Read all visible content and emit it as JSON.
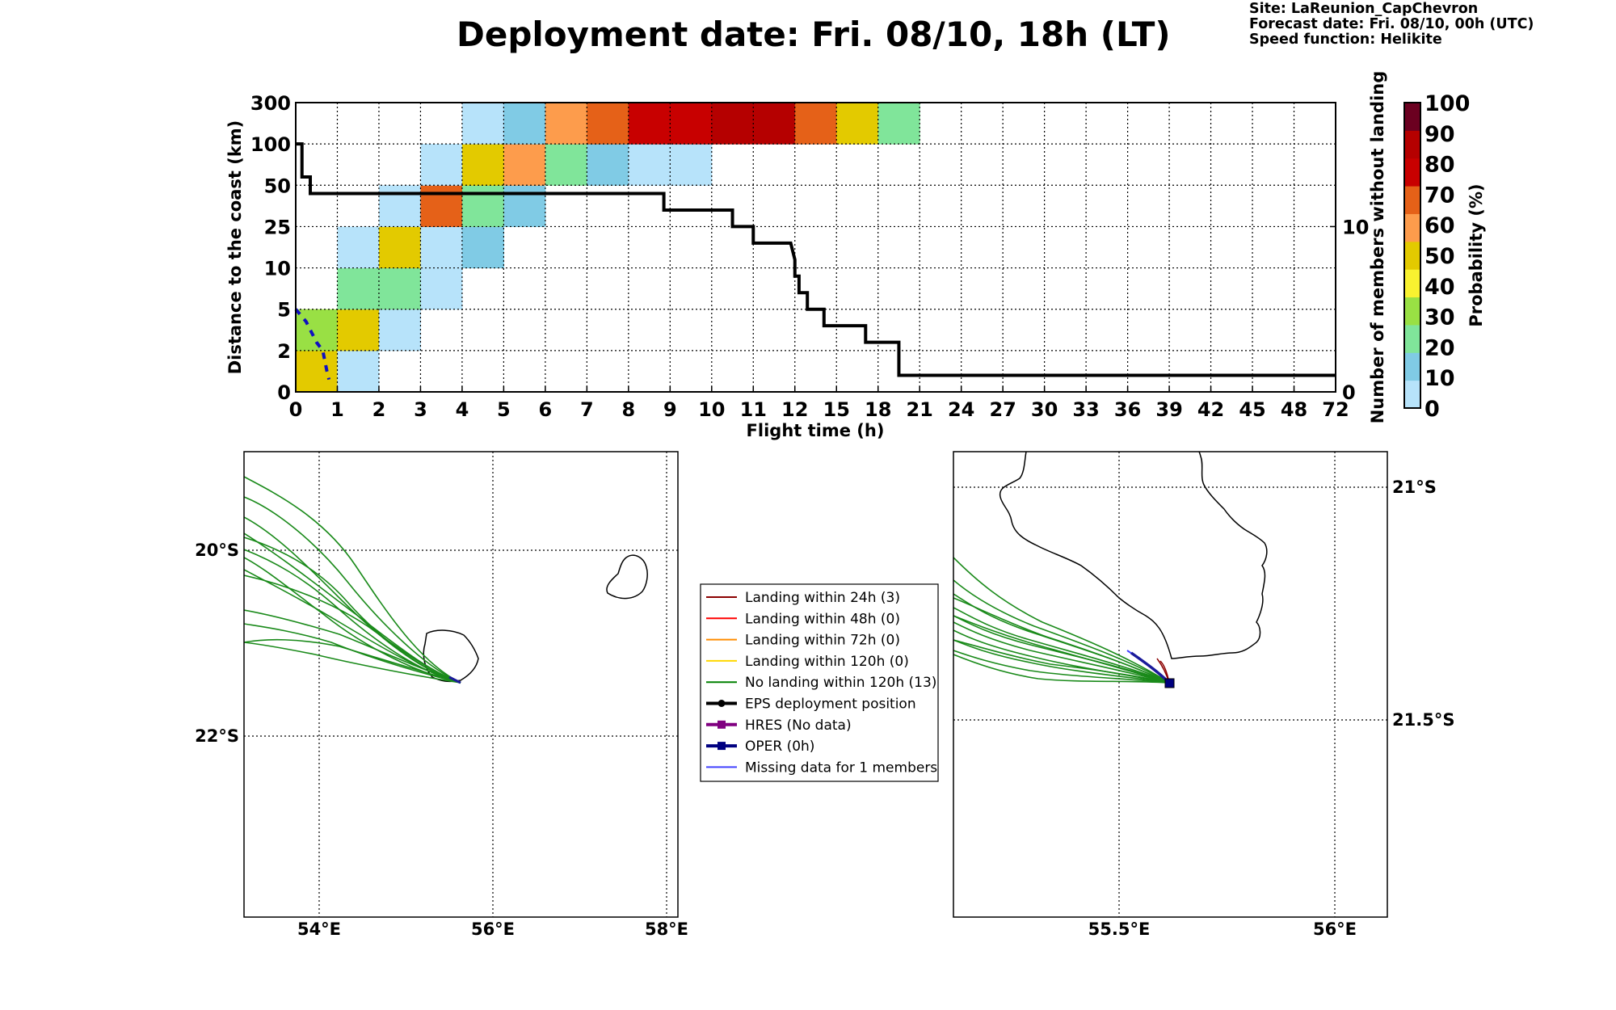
{
  "header": {
    "title": "Deployment date: Fri. 08/10, 18h (LT)",
    "site": "Site: LaReunion_CapChevron",
    "forecast": "Forecast date: Fri. 08/10, 00h (UTC)",
    "speed": "Speed function: Helikite"
  },
  "chart_data": {
    "type": "heatmap",
    "xlabel": "Flight time (h)",
    "ylabel": "Distance to the coast (km)",
    "y2label": "Number of members without landing",
    "x_ticks": [
      "0",
      "1",
      "2",
      "3",
      "4",
      "5",
      "6",
      "7",
      "8",
      "9",
      "10",
      "11",
      "12",
      "15",
      "18",
      "21",
      "24",
      "27",
      "30",
      "33",
      "36",
      "39",
      "42",
      "45",
      "48",
      "72"
    ],
    "y_ticks": [
      "0",
      "2",
      "5",
      "10",
      "25",
      "50",
      "100",
      "300"
    ],
    "y2_ticks": [
      "0",
      "10"
    ],
    "y2_range": [
      0,
      17.5
    ],
    "colorbar": {
      "label": "Probability (%)",
      "ticks": [
        "0",
        "10",
        "20",
        "30",
        "40",
        "50",
        "60",
        "70",
        "80",
        "90",
        "100"
      ],
      "bin_colors": [
        "#b7e3fa",
        "#80cbe5",
        "#80e59a",
        "#99e044",
        "#f9f230",
        "#e3ca00",
        "#fd9c4c",
        "#e56118",
        "#c80000",
        "#b50000",
        "#6b0020"
      ]
    },
    "cells": [
      {
        "x": 0,
        "y": 0,
        "p": 55
      },
      {
        "x": 0,
        "y": 1,
        "p": 35
      },
      {
        "x": 1,
        "y": 0,
        "p": 5
      },
      {
        "x": 1,
        "y": 1,
        "p": 55
      },
      {
        "x": 1,
        "y": 2,
        "p": 25
      },
      {
        "x": 1,
        "y": 3,
        "p": 5
      },
      {
        "x": 2,
        "y": 1,
        "p": 5
      },
      {
        "x": 2,
        "y": 2,
        "p": 25
      },
      {
        "x": 2,
        "y": 3,
        "p": 55
      },
      {
        "x": 2,
        "y": 4,
        "p": 5
      },
      {
        "x": 3,
        "y": 2,
        "p": 5
      },
      {
        "x": 3,
        "y": 3,
        "p": 5
      },
      {
        "x": 3,
        "y": 4,
        "p": 75
      },
      {
        "x": 3,
        "y": 5,
        "p": 5
      },
      {
        "x": 4,
        "y": 3,
        "p": 15
      },
      {
        "x": 4,
        "y": 4,
        "p": 25
      },
      {
        "x": 4,
        "y": 5,
        "p": 55
      },
      {
        "x": 4,
        "y": 6,
        "p": 5
      },
      {
        "x": 5,
        "y": 4,
        "p": 15
      },
      {
        "x": 5,
        "y": 5,
        "p": 65
      },
      {
        "x": 5,
        "y": 6,
        "p": 15
      },
      {
        "x": 6,
        "y": 5,
        "p": 25
      },
      {
        "x": 6,
        "y": 6,
        "p": 65
      },
      {
        "x": 7,
        "y": 5,
        "p": 15
      },
      {
        "x": 7,
        "y": 6,
        "p": 75
      },
      {
        "x": 8,
        "y": 5,
        "p": 5
      },
      {
        "x": 8,
        "y": 6,
        "p": 85
      },
      {
        "x": 9,
        "y": 5,
        "p": 5
      },
      {
        "x": 9,
        "y": 6,
        "p": 85
      },
      {
        "x": 10,
        "y": 6,
        "p": 95
      },
      {
        "x": 11,
        "y": 6,
        "p": 95
      },
      {
        "x": 12,
        "y": 6,
        "p": 75
      },
      {
        "x": 13,
        "y": 6,
        "p": 55
      },
      {
        "x": 14,
        "y": 6,
        "p": 25
      }
    ],
    "members_line": {
      "x": [
        0,
        0.15,
        0.15,
        0.35,
        0.35,
        0.5,
        0.5,
        8.85,
        8.85,
        10.5,
        10.5,
        11,
        11,
        11.9,
        12,
        12,
        12.1,
        12.1,
        12.3,
        12.3,
        12.7,
        12.7,
        13.7,
        13.7,
        14.5,
        14.5,
        25
      ],
      "y": [
        15,
        15,
        13,
        13,
        12,
        12,
        12,
        12,
        11,
        11,
        10,
        10,
        9,
        9,
        8,
        7,
        7,
        6,
        6,
        5,
        5,
        4,
        4,
        3,
        3,
        1,
        1
      ]
    },
    "oper_line": {
      "x": [
        0,
        0.25,
        0.5,
        0.65,
        0.75,
        0.8
      ],
      "y": [
        2.0,
        1.7,
        1.2,
        1.0,
        0.5,
        0.3
      ]
    }
  },
  "legend": {
    "items": [
      {
        "label": "Landing within 24h (3)",
        "color": "#8b0000",
        "marker": "none"
      },
      {
        "label": "Landing within 48h (0)",
        "color": "#ff0000",
        "marker": "none"
      },
      {
        "label": "Landing within 72h (0)",
        "color": "#ff8c00",
        "marker": "none"
      },
      {
        "label": "Landing within 120h (0)",
        "color": "#ffd700",
        "marker": "none"
      },
      {
        "label": "No landing within 120h (13)",
        "color": "#008000",
        "marker": "none"
      },
      {
        "label": "EPS deployment position",
        "color": "#000000",
        "marker": "circle"
      },
      {
        "label": "HRES (No data)",
        "color": "#800080",
        "marker": "square"
      },
      {
        "label": "OPER (0h)",
        "color": "#000080",
        "marker": "square"
      },
      {
        "label": "Missing data for 1 members",
        "color": "#4040ff",
        "marker": "none"
      }
    ]
  },
  "map_left": {
    "x_ticks": [
      "54°E",
      "56°E",
      "58°E"
    ],
    "y_ticks": [
      "20°S",
      "22°S"
    ]
  },
  "map_right": {
    "x_ticks": [
      "55.5°E",
      "56°E"
    ],
    "y_ticks": [
      "21°S",
      "21.5°S"
    ]
  }
}
